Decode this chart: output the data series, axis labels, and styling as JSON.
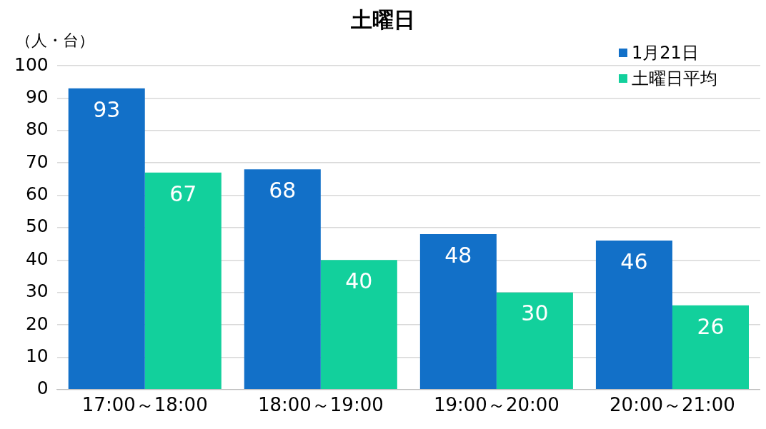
{
  "chart_data": {
    "type": "bar",
    "title": "土曜日",
    "ylabel": "（人・台）",
    "categories": [
      "17:00～18:00",
      "18:00～19:00",
      "19:00～20:00",
      "20:00～21:00"
    ],
    "series": [
      {
        "name": "1月21日",
        "color": "#1270c8",
        "values": [
          93,
          68,
          48,
          46
        ]
      },
      {
        "name": "土曜日平均",
        "color": "#12d09c",
        "values": [
          67,
          40,
          30,
          26
        ]
      }
    ],
    "ylim": [
      0,
      100
    ],
    "yticks": [
      0,
      10,
      20,
      30,
      40,
      50,
      60,
      70,
      80,
      90,
      100
    ],
    "grid": "y",
    "legend": "top right",
    "data_labels": true
  }
}
